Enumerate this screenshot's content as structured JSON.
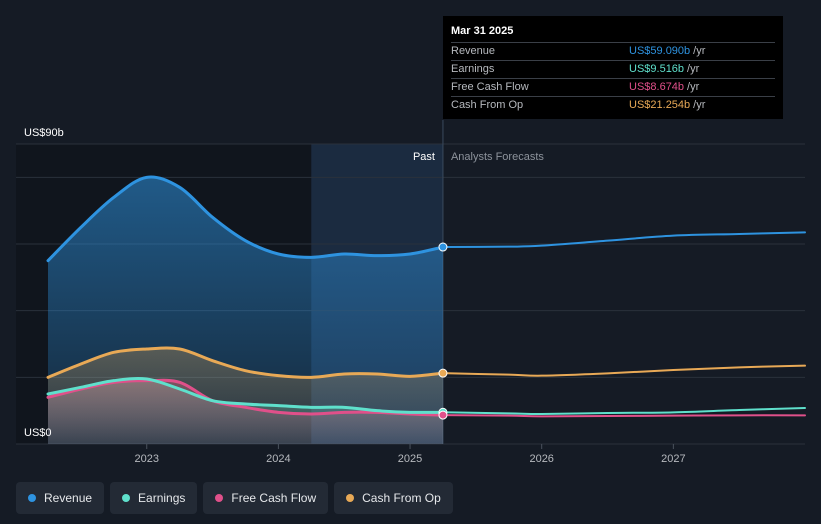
{
  "tooltip": {
    "date": "Mar 31 2025",
    "rows": [
      {
        "label": "Revenue",
        "value": "US$59.090b",
        "unit": "/yr",
        "color": "#2e93e0"
      },
      {
        "label": "Earnings",
        "value": "US$9.516b",
        "unit": "/yr",
        "color": "#5fe0cc"
      },
      {
        "label": "Free Cash Flow",
        "value": "US$8.674b",
        "unit": "/yr",
        "color": "#e0508a"
      },
      {
        "label": "Cash From Op",
        "value": "US$21.254b",
        "unit": "/yr",
        "color": "#e8a956"
      }
    ]
  },
  "legend": [
    {
      "label": "Revenue",
      "color": "#2e93e0"
    },
    {
      "label": "Earnings",
      "color": "#5fe0cc"
    },
    {
      "label": "Free Cash Flow",
      "color": "#e0508a"
    },
    {
      "label": "Cash From Op",
      "color": "#e8a956"
    }
  ],
  "chart_data": {
    "type": "line",
    "y_top_label": "US$90b",
    "y_bottom_label": "US$0",
    "ylim": [
      0,
      90
    ],
    "xlim": [
      2022.25,
      2028.0
    ],
    "x_ticks": [
      {
        "value": 2023,
        "label": "2023"
      },
      {
        "value": 2024,
        "label": "2024"
      },
      {
        "value": 2025,
        "label": "2025"
      },
      {
        "value": 2026,
        "label": "2026"
      },
      {
        "value": 2027,
        "label": "2027"
      }
    ],
    "past_label": "Past",
    "forecast_label": "Analysts Forecasts",
    "highlight_start": 2024.25,
    "divider_x": 2025.25,
    "grid": true,
    "series": [
      {
        "name": "Revenue",
        "color": "#2e93e0",
        "past": [
          [
            2022.25,
            55
          ],
          [
            2022.5,
            65
          ],
          [
            2022.75,
            74
          ],
          [
            2023.0,
            80
          ],
          [
            2023.25,
            77
          ],
          [
            2023.5,
            68
          ],
          [
            2023.75,
            61
          ],
          [
            2024.0,
            57
          ],
          [
            2024.25,
            56
          ],
          [
            2024.5,
            57
          ],
          [
            2024.75,
            56.5
          ],
          [
            2025.0,
            57
          ],
          [
            2025.25,
            59.09
          ]
        ],
        "forecast": [
          [
            2025.25,
            59.09
          ],
          [
            2025.75,
            59.2
          ],
          [
            2026.0,
            59.5
          ],
          [
            2026.5,
            61
          ],
          [
            2027.0,
            62.5
          ],
          [
            2027.5,
            63
          ],
          [
            2028.0,
            63.5
          ]
        ]
      },
      {
        "name": "Earnings",
        "color": "#5fe0cc",
        "past": [
          [
            2022.25,
            15
          ],
          [
            2022.5,
            17
          ],
          [
            2022.75,
            19
          ],
          [
            2023.0,
            19.5
          ],
          [
            2023.25,
            16.5
          ],
          [
            2023.5,
            13
          ],
          [
            2023.75,
            12
          ],
          [
            2024.0,
            11.5
          ],
          [
            2024.25,
            11
          ],
          [
            2024.5,
            11
          ],
          [
            2024.75,
            10
          ],
          [
            2025.0,
            9.5
          ],
          [
            2025.25,
            9.516
          ]
        ],
        "forecast": [
          [
            2025.25,
            9.516
          ],
          [
            2025.75,
            9.2
          ],
          [
            2026.0,
            9
          ],
          [
            2026.5,
            9.3
          ],
          [
            2027.0,
            9.5
          ],
          [
            2027.5,
            10.2
          ],
          [
            2028.0,
            10.8
          ]
        ]
      },
      {
        "name": "Free Cash Flow",
        "color": "#e0508a",
        "past": [
          [
            2022.25,
            14
          ],
          [
            2022.5,
            16.5
          ],
          [
            2022.75,
            18.5
          ],
          [
            2023.0,
            19
          ],
          [
            2023.25,
            18.5
          ],
          [
            2023.5,
            13
          ],
          [
            2023.75,
            11
          ],
          [
            2024.0,
            9.5
          ],
          [
            2024.25,
            9
          ],
          [
            2024.5,
            9.5
          ],
          [
            2024.75,
            9.5
          ],
          [
            2025.0,
            9
          ],
          [
            2025.25,
            8.674
          ]
        ],
        "forecast": [
          [
            2025.25,
            8.674
          ],
          [
            2025.75,
            8.5
          ],
          [
            2026.0,
            8.3
          ],
          [
            2026.5,
            8.4
          ],
          [
            2027.0,
            8.5
          ],
          [
            2027.5,
            8.6
          ],
          [
            2028.0,
            8.6
          ]
        ]
      },
      {
        "name": "Cash From Op",
        "color": "#e8a956",
        "past": [
          [
            2022.25,
            20
          ],
          [
            2022.5,
            24
          ],
          [
            2022.75,
            27.5
          ],
          [
            2023.0,
            28.5
          ],
          [
            2023.25,
            28.5
          ],
          [
            2023.5,
            25
          ],
          [
            2023.75,
            22
          ],
          [
            2024.0,
            20.5
          ],
          [
            2024.25,
            20
          ],
          [
            2024.5,
            21
          ],
          [
            2024.75,
            21
          ],
          [
            2025.0,
            20.3
          ],
          [
            2025.25,
            21.254
          ]
        ],
        "forecast": [
          [
            2025.25,
            21.254
          ],
          [
            2025.75,
            20.8
          ],
          [
            2026.0,
            20.5
          ],
          [
            2026.5,
            21.2
          ],
          [
            2027.0,
            22.2
          ],
          [
            2027.5,
            23
          ],
          [
            2028.0,
            23.5
          ]
        ]
      }
    ]
  }
}
